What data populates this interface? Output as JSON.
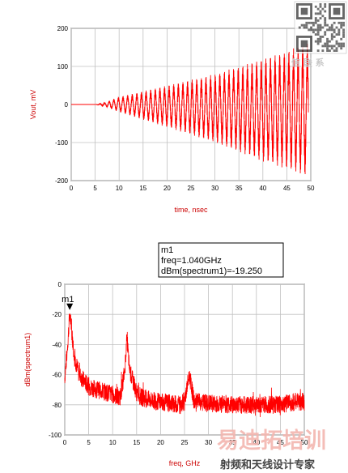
{
  "chart_data": [
    {
      "type": "line",
      "xlabel": "time, nsec",
      "ylabel": "Vout, mV",
      "xlim": [
        0,
        50
      ],
      "ylim": [
        -200,
        200
      ],
      "x_ticks": [
        "0",
        "5",
        "10",
        "15",
        "20",
        "25",
        "30",
        "35",
        "40",
        "45",
        "50"
      ],
      "y_ticks": [
        "200",
        "100",
        "0",
        "-100",
        "-200"
      ],
      "grid": true,
      "series": [
        {
          "color": "#ff0000",
          "style": "growing oscillation",
          "x": [
            0,
            5,
            7,
            10,
            15,
            20,
            25,
            30,
            35,
            40,
            45,
            49.5
          ],
          "upper_envelope": [
            0,
            0,
            5,
            20,
            35,
            50,
            65,
            80,
            100,
            120,
            140,
            165
          ],
          "lower_envelope": [
            0,
            0,
            -5,
            -20,
            -40,
            -60,
            -80,
            -100,
            -125,
            -150,
            -170,
            -190
          ]
        }
      ]
    },
    {
      "type": "line",
      "xlabel": "freq, GHz",
      "ylabel": "dBm(spectrum1)",
      "xlim": [
        0,
        50
      ],
      "ylim": [
        -100,
        0
      ],
      "x_ticks": [
        "0",
        "5",
        "10",
        "15",
        "20",
        "25",
        "30",
        "35",
        "40",
        "45",
        "50"
      ],
      "y_ticks": [
        "0",
        "-20",
        "-40",
        "-60",
        "-80",
        "-100"
      ],
      "grid": true,
      "series": [
        {
          "color": "#ff0000",
          "x": [
            0,
            0.5,
            1.04,
            2,
            3,
            5,
            7,
            9,
            10,
            11.5,
            12.5,
            13.0,
            13.5,
            14,
            15,
            16,
            18,
            20,
            22,
            24,
            25,
            26.0,
            27,
            30,
            35,
            40,
            45,
            48,
            50
          ],
          "y": [
            -62,
            -45,
            -19.25,
            -48,
            -60,
            -68,
            -70,
            -72,
            -73,
            -76,
            -58,
            -35,
            -57,
            -62,
            -72,
            -75,
            -77,
            -78,
            -79,
            -80,
            -78,
            -60,
            -78,
            -79,
            -80,
            -80,
            -80,
            -78,
            -78
          ]
        }
      ],
      "marker": {
        "name": "m1",
        "x": 1.04,
        "y": -19.25,
        "readout": [
          "m1",
          "freq=1.040GHz",
          "dBm(spectrum1)=-19.250"
        ]
      }
    }
  ],
  "watermark": {
    "cn_top": "信 联 系",
    "cn_big": "易迪拓培训",
    "cn_sub": "射频和天线设计专家"
  }
}
